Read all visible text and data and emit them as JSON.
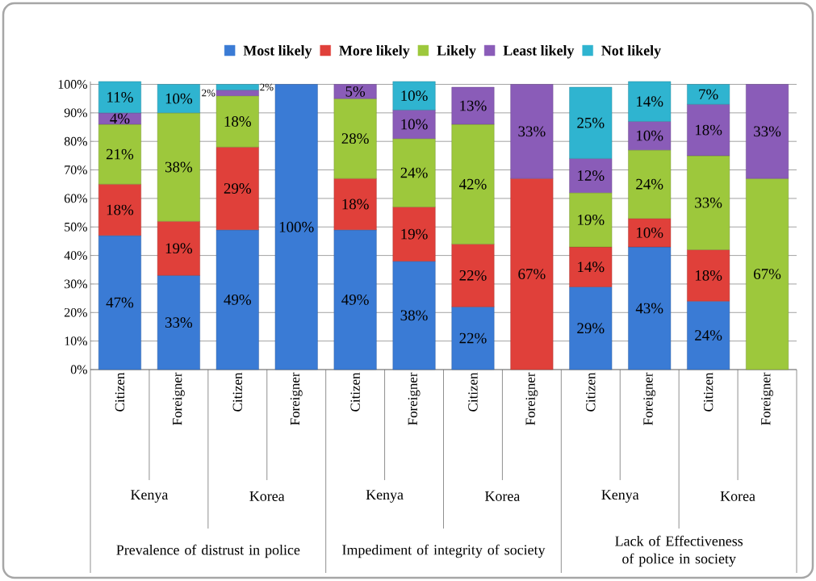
{
  "chart_data": {
    "type": "bar",
    "stacked": true,
    "legend": "top",
    "grid": "y",
    "categories": [
      "Citizen",
      "Foreigner",
      "Citizen",
      "Foreigner",
      "Citizen",
      "Foreigner",
      "Citizen",
      "Foreigner",
      "Citizen",
      "Foreigner",
      "Citizen",
      "Foreigner"
    ],
    "ylim": [
      0,
      101
    ],
    "yticks": [
      {
        "value": 0,
        "label": "0%"
      },
      {
        "value": 10,
        "label": "10%"
      },
      {
        "value": 20,
        "label": "20%"
      },
      {
        "value": 30,
        "label": "30%"
      },
      {
        "value": 40,
        "label": "40%"
      },
      {
        "value": 50,
        "label": "50%"
      },
      {
        "value": 60,
        "label": "60%"
      },
      {
        "value": 70,
        "label": "70%"
      },
      {
        "value": 80,
        "label": "80%"
      },
      {
        "value": 90,
        "label": "90%"
      },
      {
        "value": 100,
        "label": "100%"
      }
    ],
    "series": [
      {
        "name": "Most likely",
        "color": "#3a7bd5",
        "values": [
          47,
          33,
          49,
          100,
          49,
          38,
          22,
          null,
          29,
          43,
          24,
          null
        ],
        "value_labels": [
          "47%",
          "33%",
          "49%",
          "100%",
          "49%",
          "38%",
          "22%",
          null,
          "29%",
          "43%",
          "24%",
          null
        ]
      },
      {
        "name": "More likely",
        "color": "#e0403a",
        "values": [
          18,
          19,
          29,
          null,
          18,
          19,
          22,
          67,
          14,
          10,
          18,
          null
        ],
        "value_labels": [
          "18%",
          "19%",
          "29%",
          null,
          "18%",
          "19%",
          "22%",
          "67%",
          "14%",
          "10%",
          "18%",
          null
        ]
      },
      {
        "name": "Likely",
        "color": "#9dc83c",
        "values": [
          21,
          38,
          18,
          null,
          28,
          24,
          42,
          null,
          19,
          24,
          33,
          67
        ],
        "value_labels": [
          "21%",
          "38%",
          "18%",
          null,
          "28%",
          "24%",
          "42%",
          null,
          "19%",
          "24%",
          "33%",
          "67%"
        ]
      },
      {
        "name": "Least likely",
        "color": "#8a5cb8",
        "values": [
          4,
          null,
          2,
          null,
          5,
          10,
          13,
          33,
          12,
          10,
          18,
          33
        ],
        "value_labels": [
          "4%",
          null,
          "2%",
          null,
          "5%",
          "10%",
          "13%",
          "33%",
          "12%",
          "10%",
          "18%",
          "33%"
        ]
      },
      {
        "name": "Not likely",
        "color": "#2fb4d0",
        "values": [
          11,
          10,
          2,
          null,
          null,
          10,
          null,
          null,
          25,
          14,
          7,
          null
        ],
        "value_labels": [
          "11%",
          "10%",
          "2%",
          null,
          null,
          "10%",
          null,
          null,
          "25%",
          "14%",
          "7%",
          null
        ]
      }
    ],
    "annotations": [
      "Kenya",
      "Korea",
      "Kenya",
      "Korea",
      "Kenya",
      "Korea",
      "Prevalence of  distrust in police",
      "Impediment of integrity of society",
      "Lack of Effectiveness of police in society"
    ]
  }
}
